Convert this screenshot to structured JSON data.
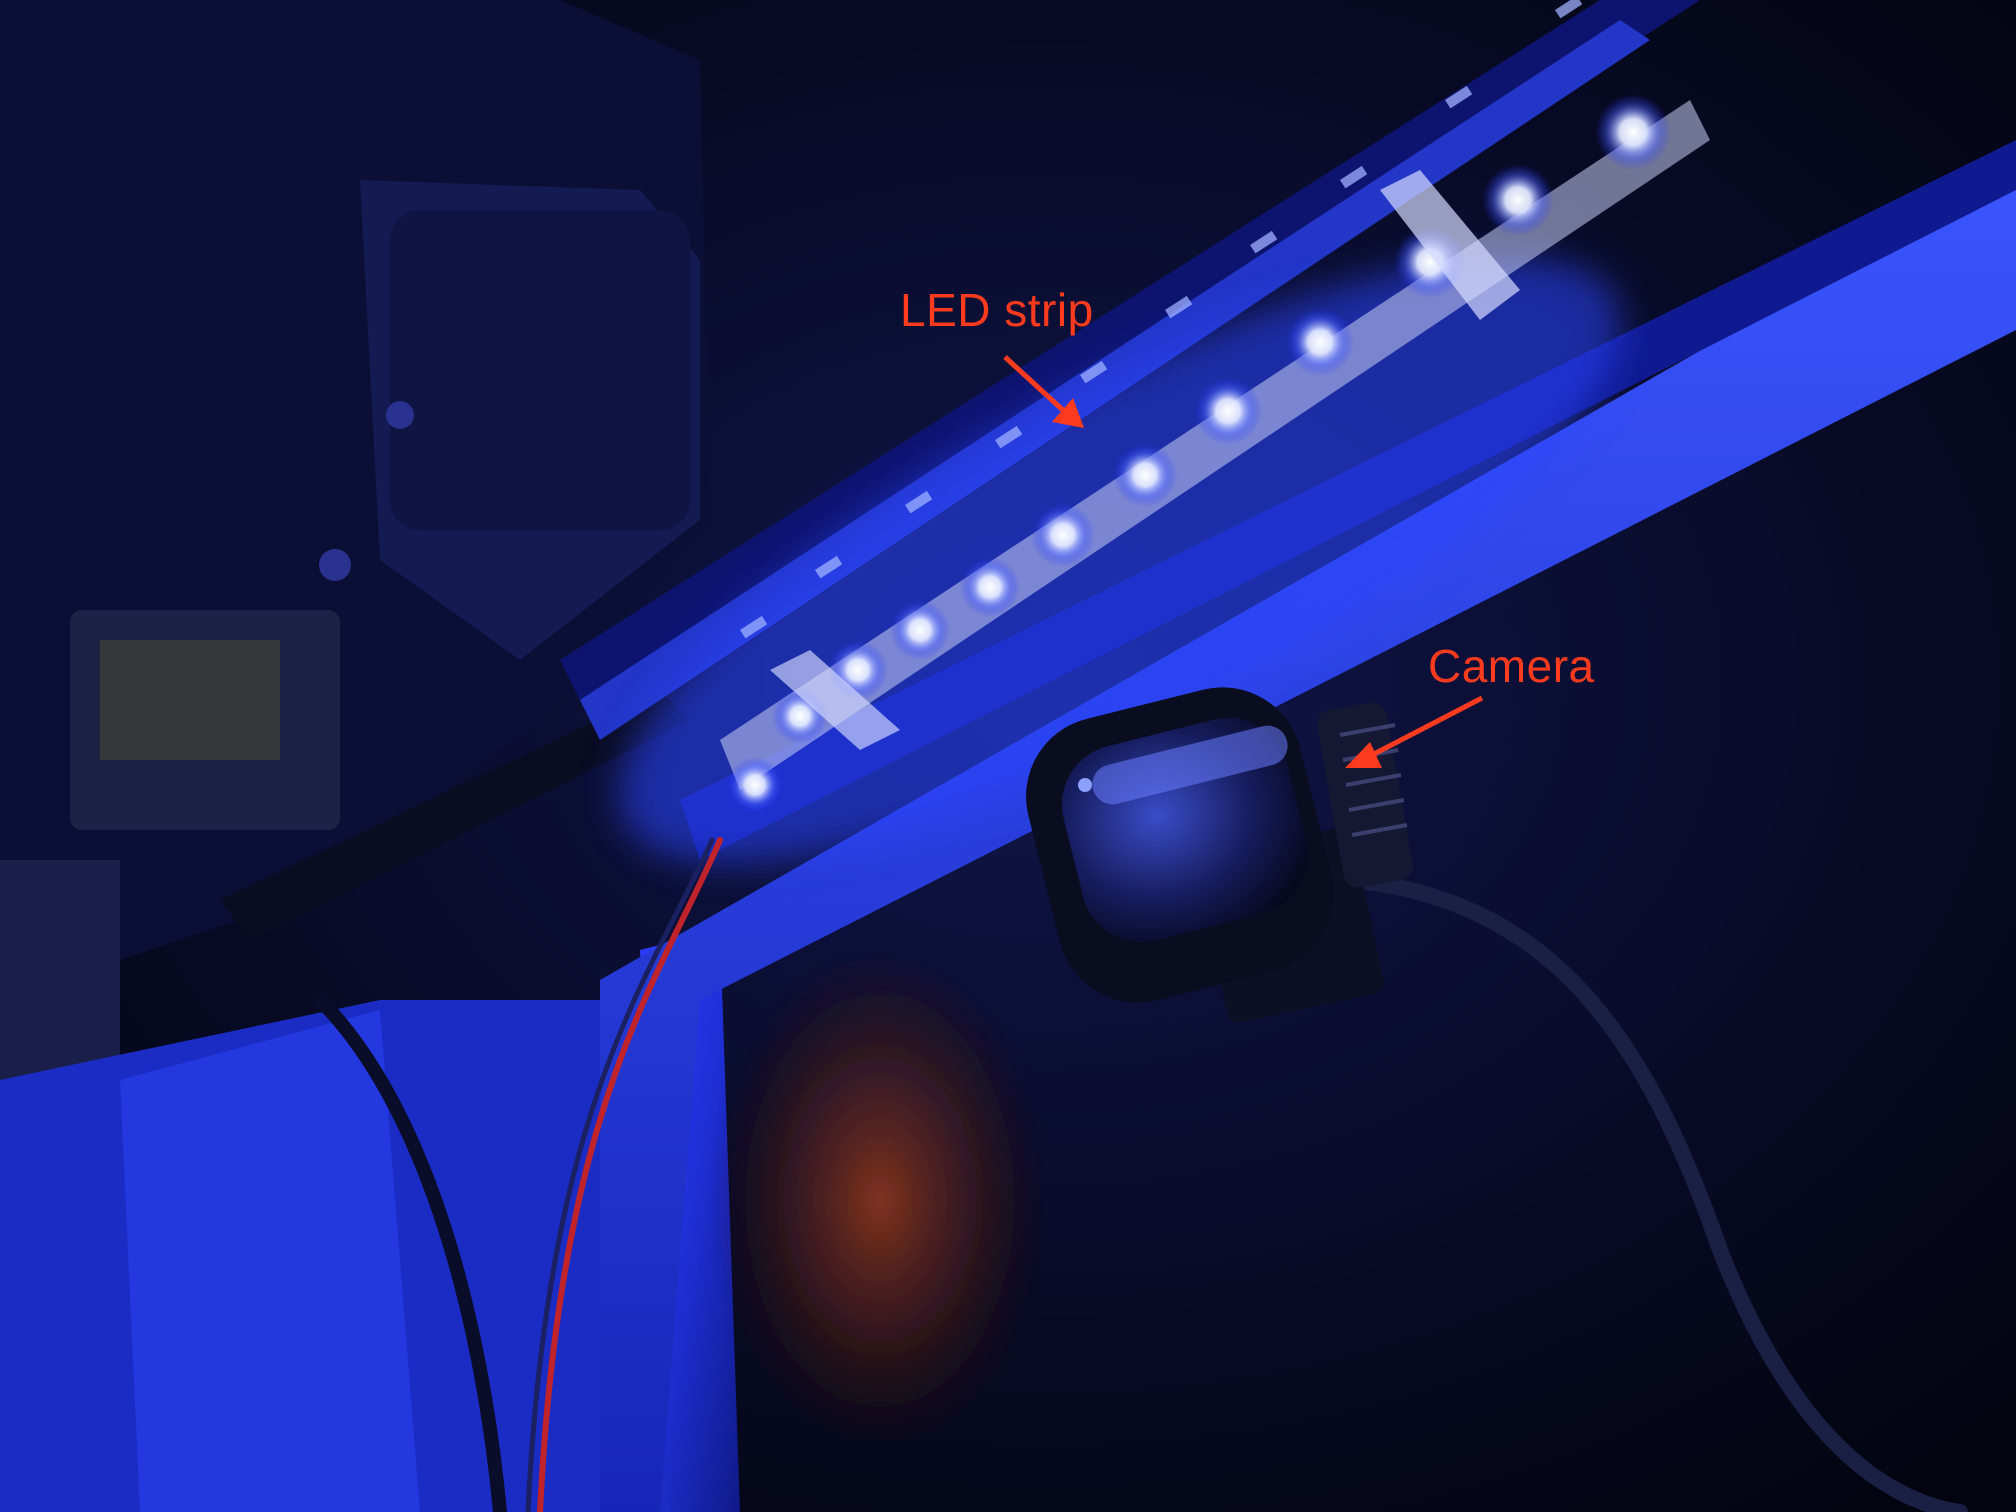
{
  "annotations": {
    "led_strip_label": "LED strip",
    "camera_label": "Camera",
    "color": "#ff3b1f"
  },
  "scene": {
    "subject_icons": [
      "led-strip-icon",
      "camera-icon",
      "printer-frame",
      "cable-icon"
    ],
    "led_color": "#f2f6ff",
    "glow_color": "#1f34ff",
    "frame_color": "#2430d8",
    "background_color": "#05071a"
  }
}
